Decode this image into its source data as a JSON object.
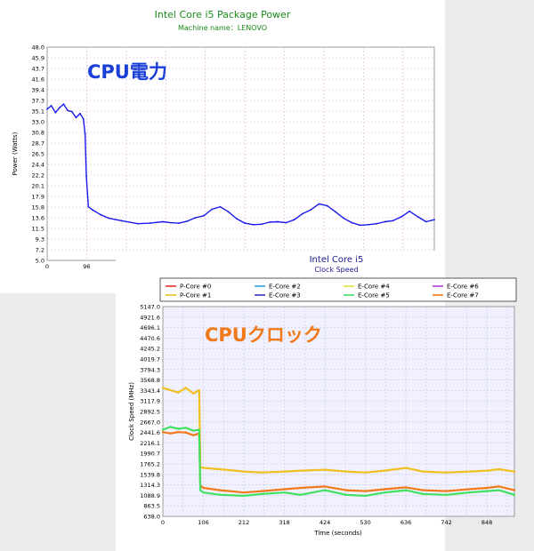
{
  "power_chart": {
    "title": "Intel Core i5 Package Power",
    "subtitle": "Machine name：LENOVO",
    "badge": "CPU電力",
    "colors": {
      "line": "#1a1aee",
      "title": "#1a8a1a",
      "grid": "#d9a9d9",
      "badge": "#1a3fd6"
    }
  },
  "clock_chart": {
    "title": "Intel Core i5",
    "subtitle": "Clock Speed",
    "badge": "CPUクロック",
    "colors": {
      "title": "#1a1a8f",
      "grid": "#c5c5e6",
      "badge": "#f07a1a"
    }
  },
  "chart_data": [
    {
      "type": "line",
      "title": "Intel Core i5 Package Power",
      "subtitle": "Machine name：LENOVO",
      "ylabel": "Power (Watts)",
      "xlabel": "",
      "ylim": [
        5.0,
        48.0
      ],
      "xlim": [
        0,
        940
      ],
      "y_ticks": [
        "48.0",
        "45.9",
        "43.7",
        "41.6",
        "39.4",
        "37.3",
        "35.1",
        "33.0",
        "30.8",
        "28.7",
        "26.5",
        "24.4",
        "22.2",
        "20.1",
        "17.9",
        "15.8",
        "13.6",
        "11.5",
        "9.3",
        "7.2",
        "5.0"
      ],
      "x_ticks": [
        "0",
        "96"
      ],
      "series": [
        {
          "color": "#1a1aee",
          "x": [
            0,
            10,
            20,
            30,
            40,
            50,
            60,
            70,
            80,
            88,
            92,
            95,
            100,
            110,
            130,
            150,
            180,
            220,
            250,
            280,
            300,
            320,
            340,
            360,
            380,
            400,
            420,
            440,
            460,
            480,
            500,
            520,
            540,
            560,
            580,
            600,
            620,
            640,
            660,
            680,
            700,
            720,
            740,
            760,
            780,
            800,
            820,
            840,
            860,
            880,
            900,
            920,
            940
          ],
          "y": [
            35.5,
            36.2,
            34.8,
            35.8,
            36.5,
            35.2,
            35.0,
            33.8,
            34.6,
            33.5,
            30.5,
            22.0,
            15.8,
            15.2,
            14.2,
            13.5,
            13.0,
            12.4,
            12.5,
            12.8,
            12.6,
            12.5,
            12.9,
            13.6,
            14.0,
            15.3,
            15.8,
            14.8,
            13.4,
            12.5,
            12.2,
            12.3,
            12.7,
            12.8,
            12.6,
            13.2,
            14.4,
            15.2,
            16.4,
            16.0,
            14.8,
            13.5,
            12.6,
            12.1,
            12.2,
            12.4,
            12.8,
            13.0,
            13.8,
            14.9,
            13.8,
            12.8,
            13.2
          ]
        }
      ]
    },
    {
      "type": "line",
      "title": "Intel Core i5",
      "subtitle": "Clock Speed",
      "ylabel": "Clock Speed (MHz)",
      "xlabel": "Time (seconds)",
      "ylim": [
        638.0,
        5147.0
      ],
      "xlim": [
        0,
        920
      ],
      "y_ticks": [
        "5147.0",
        "4921.6",
        "4696.1",
        "4470.6",
        "4245.2",
        "4019.7",
        "3794.3",
        "3568.8",
        "3343.4",
        "3117.9",
        "2892.5",
        "2667.0",
        "2441.6",
        "2216.1",
        "1990.7",
        "1765.2",
        "1539.8",
        "1314.3",
        "1088.9",
        "863.5",
        "638.0"
      ],
      "x_ticks": [
        "0",
        "106",
        "212",
        "318",
        "424",
        "530",
        "636",
        "742",
        "848"
      ],
      "legend": [
        "P-Core #0",
        "E-Core #2",
        "E-Core #4",
        "E-Core #6",
        "P-Core #1",
        "E-Core #3",
        "E-Core #5",
        "E-Core #7"
      ],
      "legend_colors": [
        "#e03030",
        "#30a0e0",
        "#e8e040",
        "#b040e0",
        "#f0c020",
        "#3040c0",
        "#40e060",
        "#f07a1a"
      ],
      "series": [
        {
          "name": "P-Core #1",
          "color": "#f0c020",
          "x": [
            0,
            20,
            40,
            60,
            80,
            95,
            98,
            106,
            150,
            212,
            260,
            318,
            360,
            424,
            480,
            530,
            580,
            636,
            680,
            742,
            800,
            848,
            880,
            920
          ],
          "y": [
            3400,
            3350,
            3300,
            3400,
            3280,
            3350,
            1700,
            1680,
            1650,
            1600,
            1580,
            1600,
            1620,
            1640,
            1600,
            1580,
            1620,
            1680,
            1600,
            1580,
            1600,
            1620,
            1650,
            1600
          ]
        },
        {
          "name": "E-Core #7",
          "color": "#f07a1a",
          "x": [
            0,
            20,
            40,
            60,
            80,
            95,
            98,
            106,
            150,
            212,
            260,
            318,
            360,
            424,
            480,
            530,
            580,
            636,
            680,
            742,
            800,
            848,
            880,
            920
          ],
          "y": [
            2450,
            2420,
            2450,
            2440,
            2380,
            2420,
            1300,
            1250,
            1200,
            1150,
            1180,
            1220,
            1250,
            1280,
            1200,
            1180,
            1220,
            1260,
            1200,
            1180,
            1220,
            1250,
            1280,
            1200
          ]
        },
        {
          "name": "E-Core #5",
          "color": "#40e060",
          "x": [
            0,
            20,
            40,
            60,
            80,
            95,
            98,
            106,
            150,
            212,
            260,
            318,
            360,
            424,
            480,
            530,
            580,
            636,
            680,
            742,
            800,
            848,
            880,
            920
          ],
          "y": [
            2500,
            2560,
            2520,
            2540,
            2480,
            2500,
            1200,
            1150,
            1100,
            1080,
            1120,
            1150,
            1100,
            1200,
            1100,
            1080,
            1150,
            1200,
            1120,
            1100,
            1150,
            1180,
            1200,
            1100
          ]
        }
      ]
    }
  ]
}
